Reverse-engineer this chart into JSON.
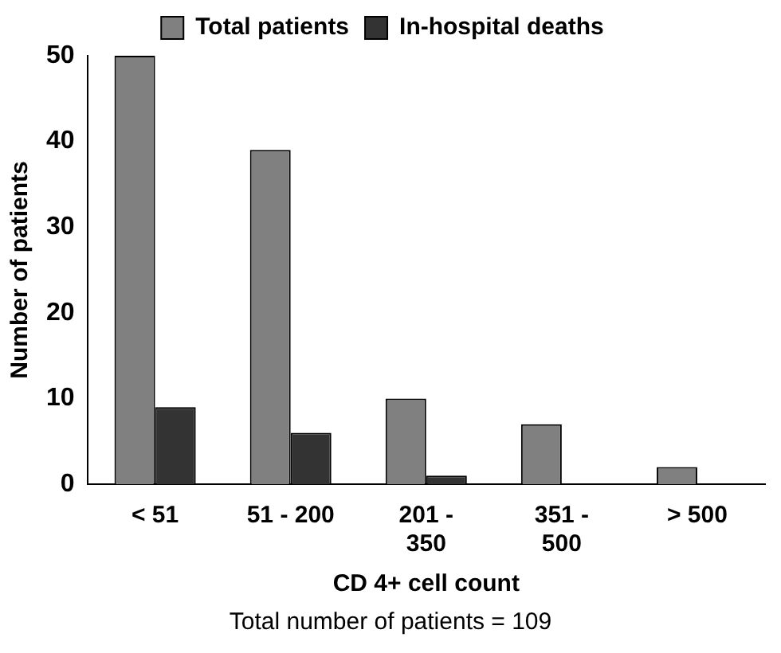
{
  "chart_data": {
    "type": "bar",
    "xlabel": "CD 4+ cell count",
    "ylabel": "Number of patients",
    "categories": [
      "< 51",
      "51 - 200",
      "201 - 350",
      "351 - 500",
      "> 500"
    ],
    "series": [
      {
        "name": "Total patients",
        "color": "#808080",
        "values": [
          50,
          39,
          10,
          7,
          2
        ]
      },
      {
        "name": "In-hospital deaths",
        "color": "#333333",
        "values": [
          9,
          6,
          1,
          0,
          0
        ]
      }
    ],
    "ylim": [
      0,
      50
    ],
    "yticks": [
      0,
      10,
      20,
      30,
      40,
      50
    ],
    "grid": false,
    "legend": "top",
    "annotations": [
      "Total number of patients = 109"
    ]
  }
}
